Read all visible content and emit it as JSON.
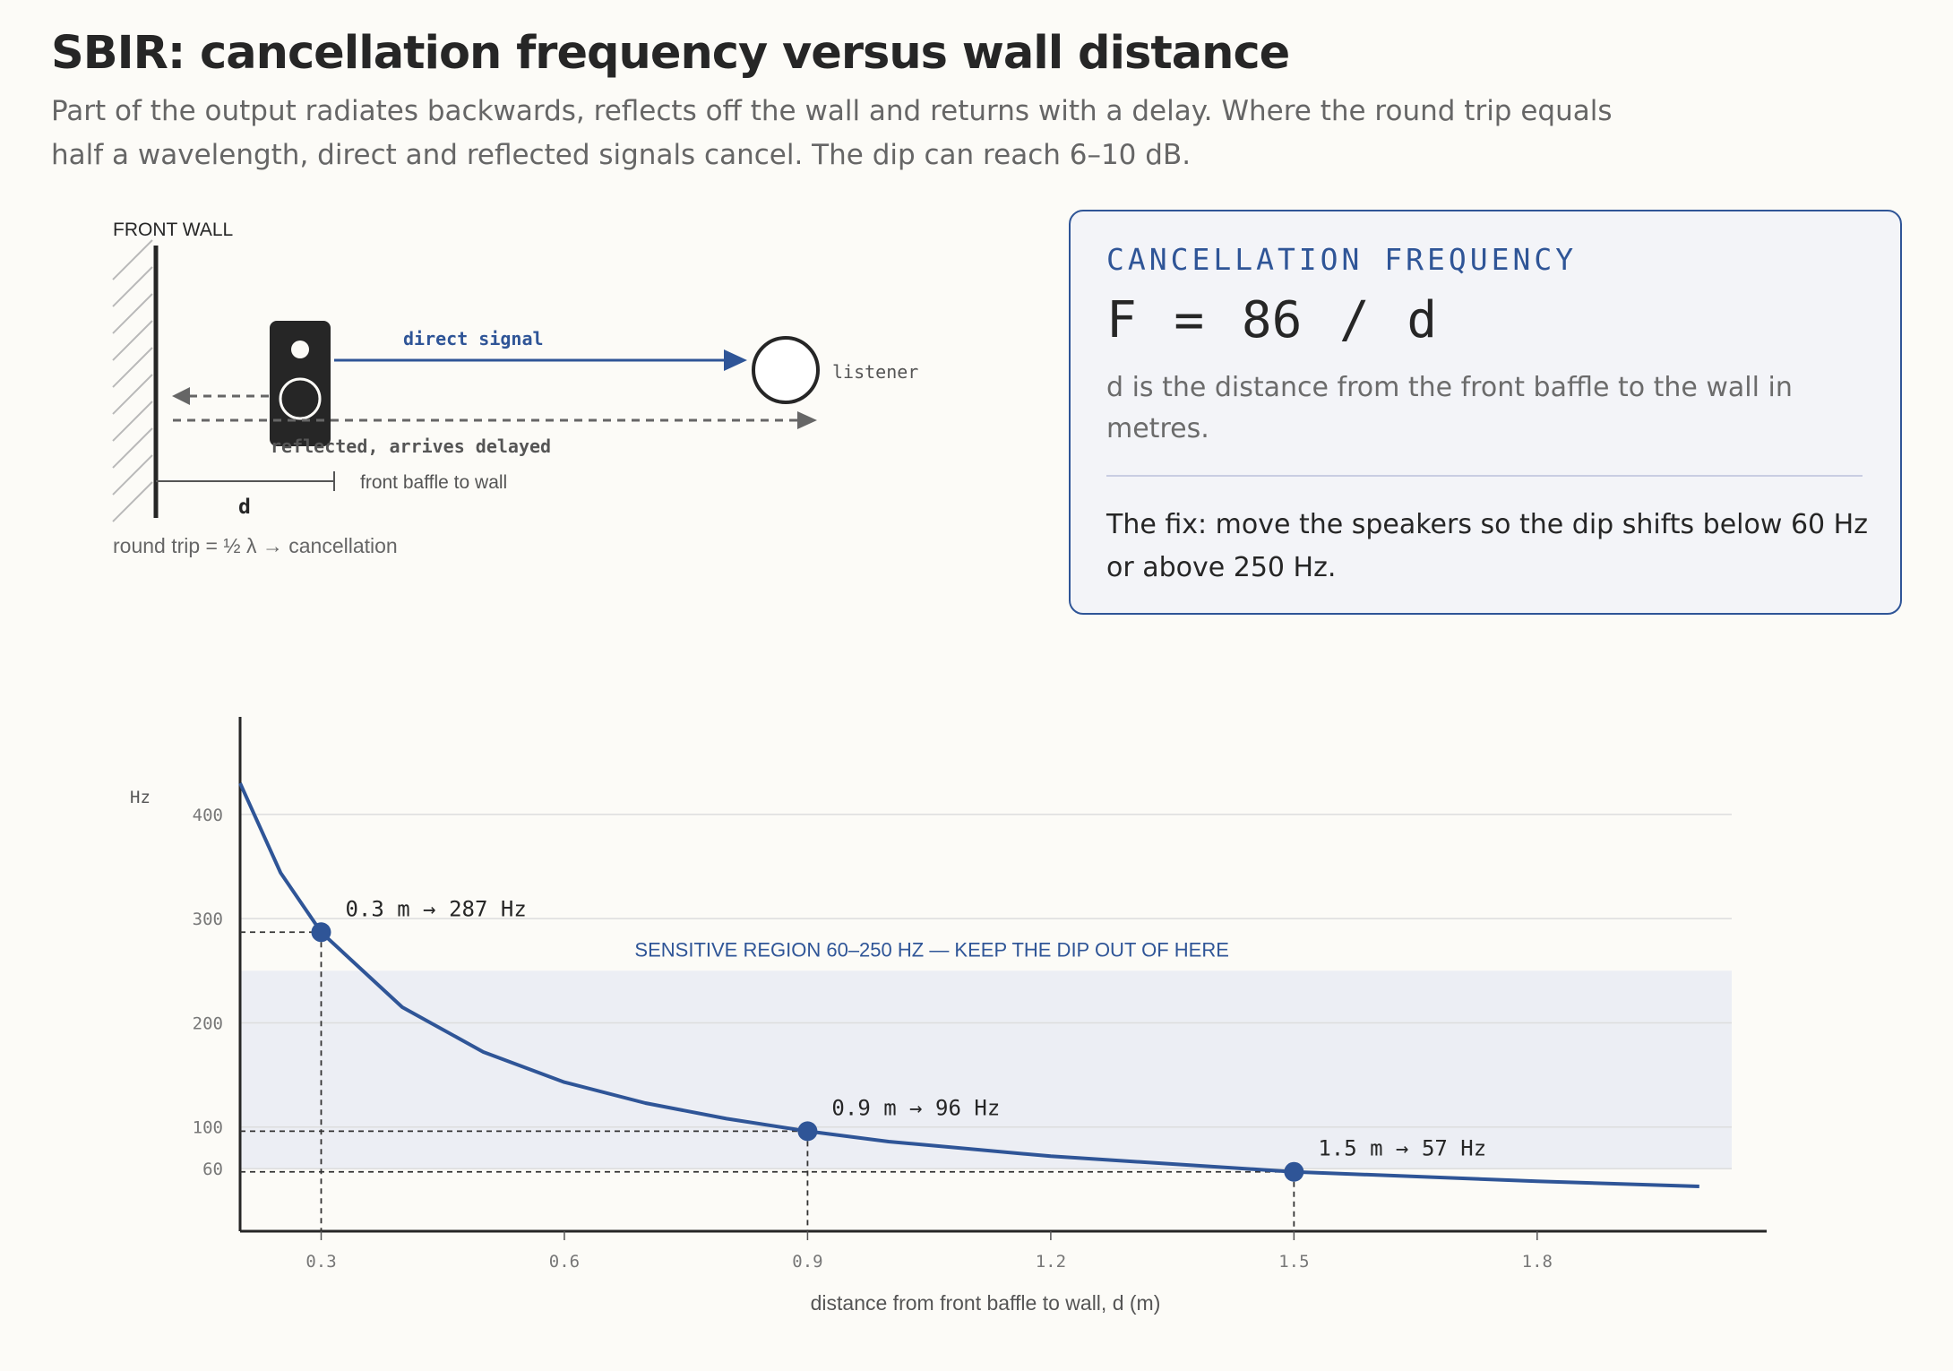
{
  "header": {
    "title": "SBIR: cancellation frequency versus wall distance",
    "subtitle": "Part of the output radiates backwards, reflects off the wall and returns with a delay. Where the round trip equals half a wavelength, direct and reflected signals cancel. The dip can reach 6–10 dB."
  },
  "diagram": {
    "wall_label": "FRONT WALL",
    "direct_label": "direct signal",
    "listener_label": "listener",
    "reflected_label": "reflected, arrives delayed",
    "baffle_label": "front baffle to wall",
    "d_label": "d",
    "caption": "round trip = ½ λ → cancellation",
    "colors": {
      "direct": "#2f5597",
      "reflected": "#666666",
      "speaker": "#262626"
    }
  },
  "card": {
    "kicker": "CANCELLATION FREQUENCY",
    "formula": "F = 86 / d",
    "description": "d is the distance from the front baffle to the wall in metres.",
    "fix": "The fix: move the speakers so the dip shifts below 60 Hz or above 250 Hz."
  },
  "chart_data": {
    "type": "line",
    "xlabel": "distance from front baffle to wall, d (m)",
    "ylabel": "Hz",
    "xlim": [
      0.2,
      2.04
    ],
    "ylim": [
      0,
      430
    ],
    "x_ticks": [
      0.3,
      0.6,
      0.9,
      1.2,
      1.5,
      1.8
    ],
    "x_tick_labels": [
      "0.3",
      "0.6",
      "0.9",
      "1.2",
      "1.5",
      "1.8"
    ],
    "y_ticks": [
      60,
      100,
      200,
      300,
      400
    ],
    "y_tick_labels": [
      "60",
      "100",
      "200",
      "300",
      "400"
    ],
    "grid": "horizontal",
    "series": [
      {
        "name": "",
        "color": "#2f5597",
        "x": [
          0.2,
          0.25,
          0.3,
          0.4,
          0.5,
          0.6,
          0.7,
          0.8,
          0.9,
          1.0,
          1.2,
          1.5,
          1.8,
          2.0
        ],
        "y": [
          430,
          344,
          287,
          215,
          172,
          143,
          123,
          108,
          96,
          86,
          72,
          57,
          48,
          43
        ]
      }
    ],
    "band": {
      "from": 60,
      "to": 250,
      "color": "#eceef4",
      "label": "SENSITIVE REGION 60–250 HZ — KEEP THE DIP OUT OF HERE"
    },
    "highlights": [
      {
        "x": 0.3,
        "y": 287,
        "label": "0.3 m → 287 Hz"
      },
      {
        "x": 0.9,
        "y": 96,
        "label": "0.9 m → 96 Hz"
      },
      {
        "x": 1.5,
        "y": 57,
        "label": "1.5 m → 57 Hz"
      }
    ]
  }
}
